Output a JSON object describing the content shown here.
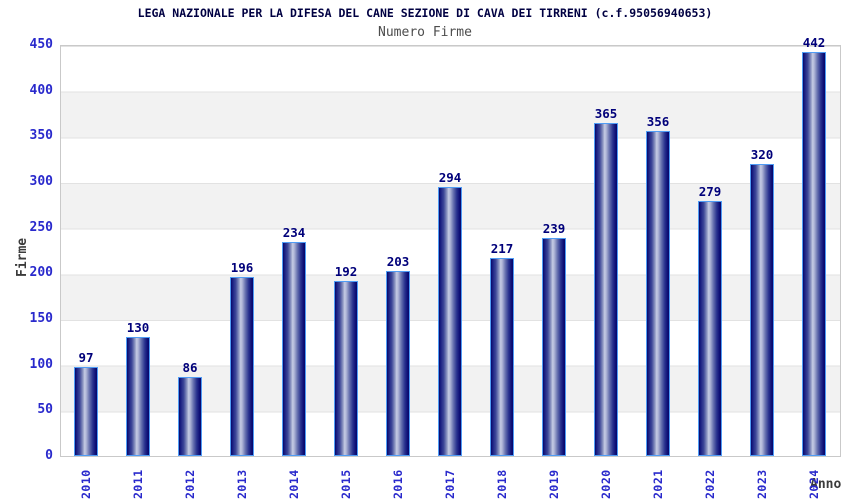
{
  "chart_data": {
    "type": "bar",
    "title": "LEGA NAZIONALE PER LA DIFESA DEL CANE SEZIONE DI CAVA DEI TIRRENI (c.f.95056940653)",
    "subtitle": "Numero Firme",
    "xlabel": "Anno",
    "ylabel": "Firme",
    "categories": [
      "2010",
      "2011",
      "2012",
      "2013",
      "2014",
      "2015",
      "2016",
      "2017",
      "2018",
      "2019",
      "2020",
      "2021",
      "2022",
      "2023",
      "2024"
    ],
    "values": [
      97,
      130,
      86,
      196,
      234,
      192,
      203,
      294,
      217,
      239,
      365,
      356,
      279,
      320,
      442
    ],
    "ylim": [
      0,
      450
    ],
    "ytick_step": 50,
    "ytick_labels": [
      "0",
      "50",
      "100",
      "150",
      "200",
      "250",
      "300",
      "350",
      "400",
      "450"
    ],
    "grid": "alternating-horizontal-bands",
    "legend": "none",
    "colors": {
      "title_text": "#000042",
      "subtitle_text": "#4d4d4d",
      "axis_title_text": "#3c3c3c",
      "tick_label_blue": "#2929cc",
      "value_label_navy": "#00007a",
      "bar_dark": "#06066a",
      "bar_highlight": "#c6cce4",
      "bar_border": "#4f9cf5",
      "band_gray": "#f2f2f2",
      "axis_line_gray": "#c9c9c9",
      "background": "#ffffff"
    }
  }
}
